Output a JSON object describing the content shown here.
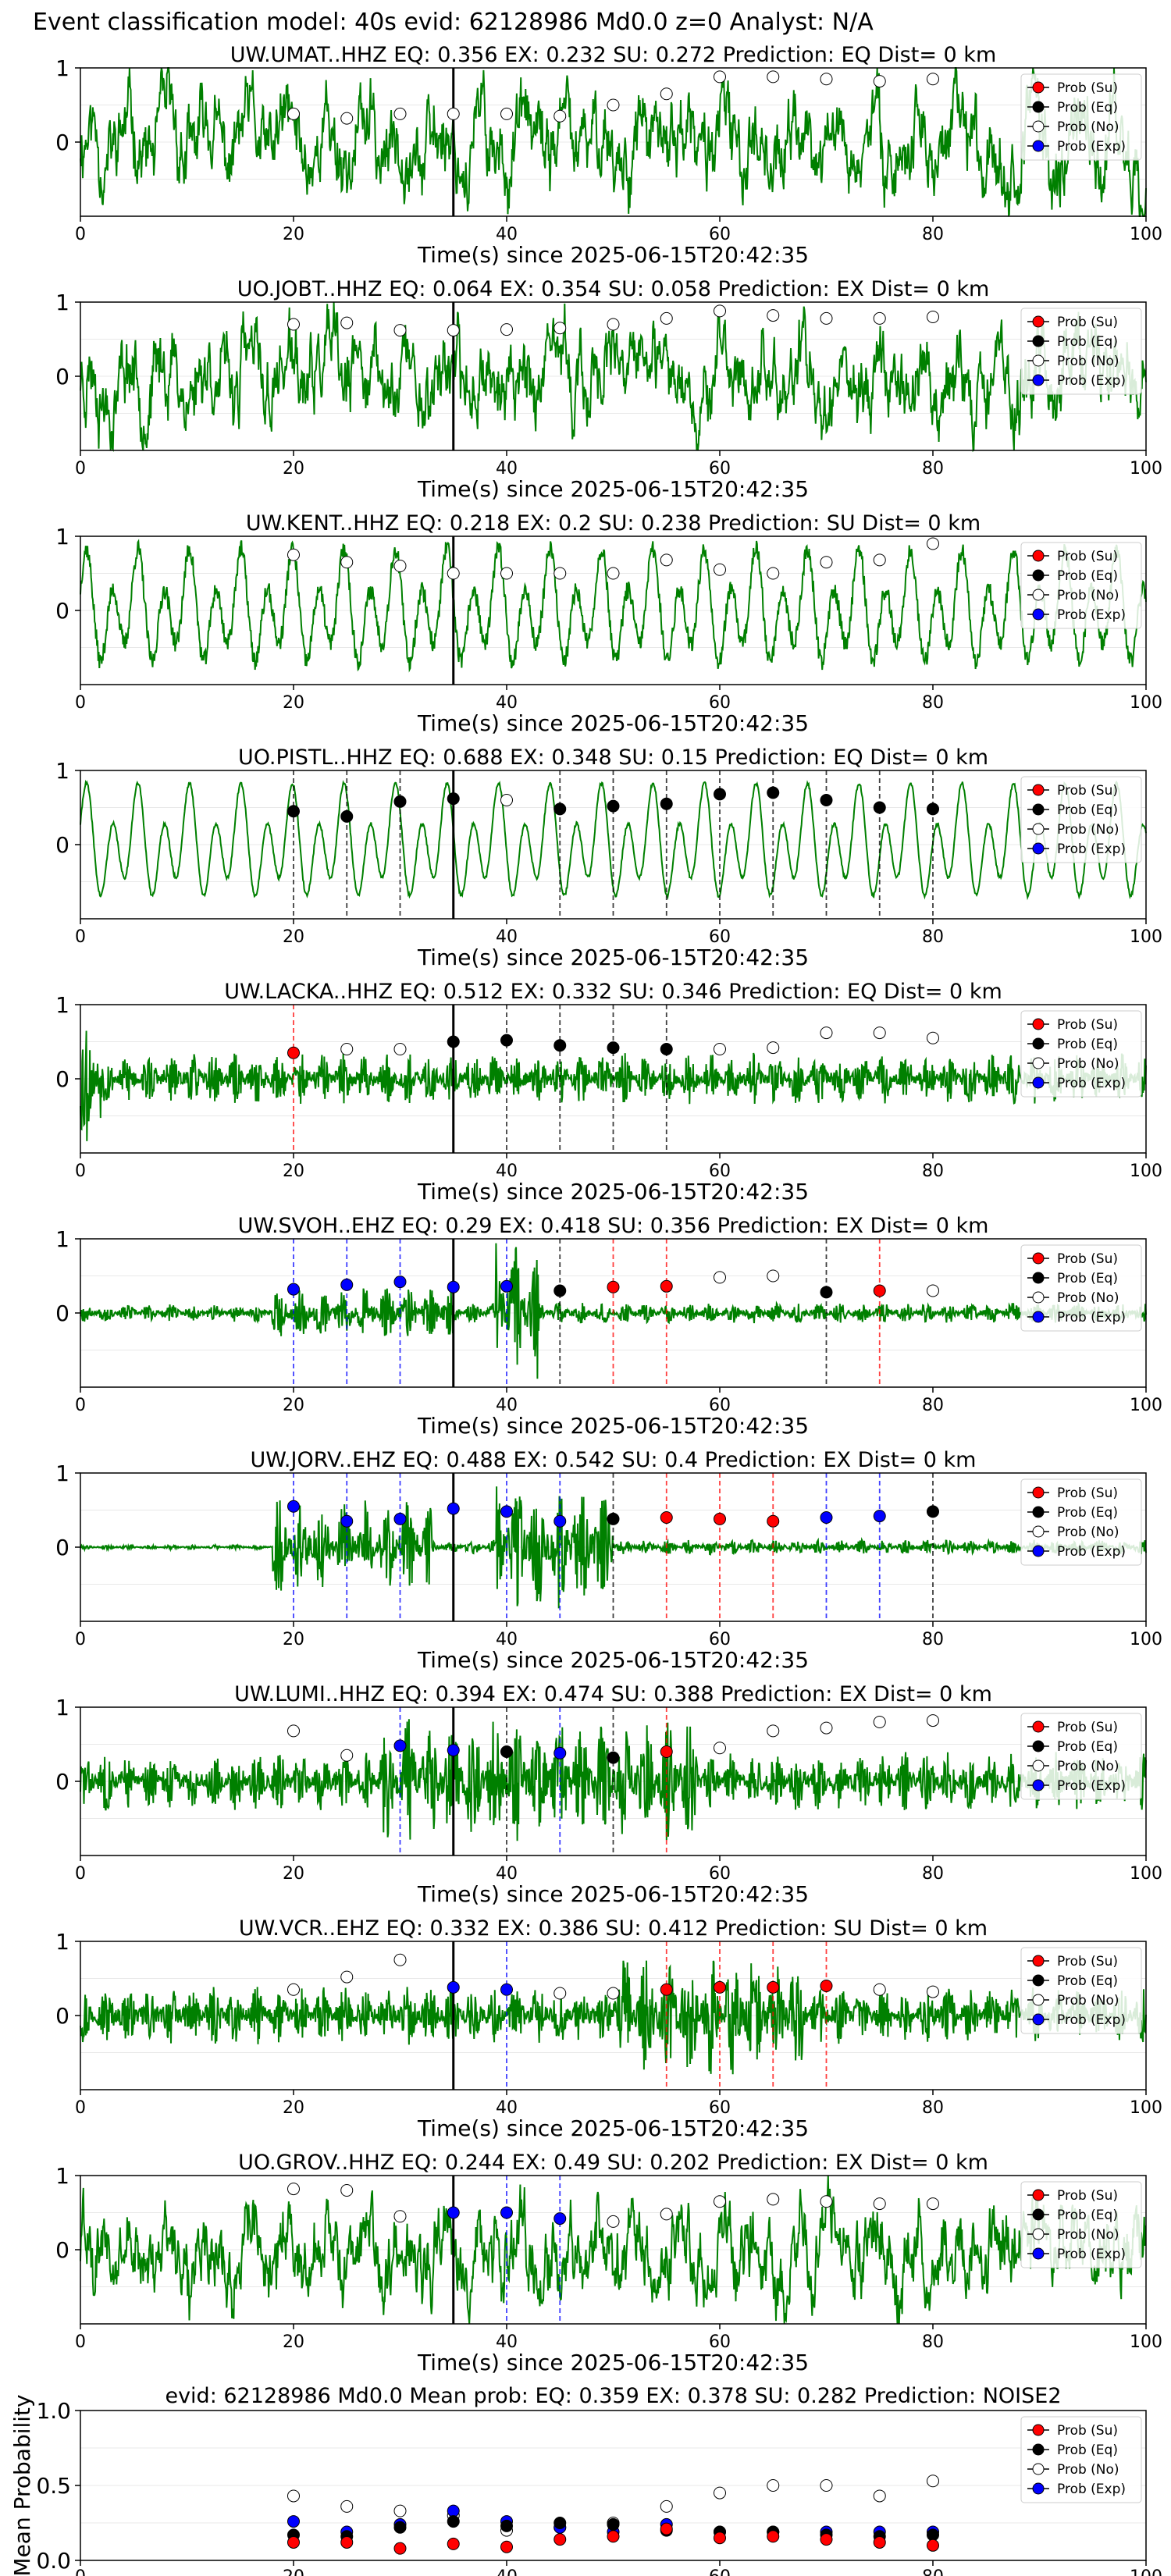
{
  "figure": {
    "suptitle": "Event classification model: 40s evid: 62128986 Md0.0 z=0 Analyst: N/A",
    "xlabel": "Time(s) since 2025-06-15T20:42:35",
    "legend": [
      "Prob (Su)",
      "Prob (Eq)",
      "Prob (No)",
      "Prob (Exp)"
    ],
    "colors": {
      "su": "#ff0000",
      "eq": "#000000",
      "no": "#ffffff",
      "exp": "#0000ff",
      "trace": "#008000"
    }
  },
  "chart_data": [
    {
      "type": "line",
      "station": "UW.UMAT..HHZ",
      "title": "UW.UMAT..HHZ   EQ: 0.356  EX: 0.232  SU: 0.272   Prediction: EQ    Dist= 0 km",
      "style": "broadband",
      "seed": 11,
      "points": [
        [
          "no",
          0.38
        ],
        [
          "no",
          0.32
        ],
        [
          "no",
          0.38
        ],
        [
          "no",
          0.38
        ],
        [
          "no",
          0.38
        ],
        [
          "no",
          0.35
        ],
        [
          "no",
          0.5
        ],
        [
          "no",
          0.65
        ],
        [
          "no",
          0.88
        ],
        [
          "no",
          0.88
        ],
        [
          "no",
          0.85
        ],
        [
          "no",
          0.82
        ],
        [
          "no",
          0.85
        ]
      ]
    },
    {
      "type": "line",
      "station": "UO.JOBT..HHZ",
      "title": "UO.JOBT..HHZ   EQ: 0.064  EX: 0.354  SU: 0.058   Prediction: EX    Dist= 0 km",
      "style": "broadband",
      "seed": 23,
      "points": [
        [
          "no",
          0.7
        ],
        [
          "no",
          0.72
        ],
        [
          "no",
          0.62
        ],
        [
          "no",
          0.62
        ],
        [
          "no",
          0.63
        ],
        [
          "no",
          0.65
        ],
        [
          "no",
          0.7
        ],
        [
          "no",
          0.78
        ],
        [
          "no",
          0.88
        ],
        [
          "no",
          0.82
        ],
        [
          "no",
          0.78
        ],
        [
          "no",
          0.78
        ],
        [
          "no",
          0.8
        ]
      ]
    },
    {
      "type": "line",
      "station": "UW.KENT..HHZ",
      "title": "UW.KENT..HHZ   EQ: 0.218  EX: 0.2  SU: 0.238   Prediction: SU    Dist= 0 km",
      "style": "wavy",
      "seed": 37,
      "points": [
        [
          "no",
          0.75
        ],
        [
          "no",
          0.65
        ],
        [
          "no",
          0.6
        ],
        [
          "no",
          0.5
        ],
        [
          "no",
          0.5
        ],
        [
          "no",
          0.5
        ],
        [
          "no",
          0.5
        ],
        [
          "no",
          0.68
        ],
        [
          "no",
          0.55
        ],
        [
          "no",
          0.5
        ],
        [
          "no",
          0.65
        ],
        [
          "no",
          0.68
        ],
        [
          "no",
          0.9
        ]
      ]
    },
    {
      "type": "line",
      "station": "UO.PISTL..HHZ",
      "title": "UO.PISTL..HHZ   EQ: 0.688  EX: 0.348  SU: 0.15   Prediction: EQ    Dist= 0 km",
      "style": "wavy2",
      "seed": 41,
      "points": [
        [
          "eq",
          0.45
        ],
        [
          "eq",
          0.38
        ],
        [
          "eq",
          0.58
        ],
        [
          "eq",
          0.62
        ],
        [
          "no",
          0.6
        ],
        [
          "eq",
          0.48
        ],
        [
          "eq",
          0.52
        ],
        [
          "eq",
          0.55
        ],
        [
          "eq",
          0.68
        ],
        [
          "eq",
          0.7
        ],
        [
          "eq",
          0.6
        ],
        [
          "eq",
          0.5
        ],
        [
          "eq",
          0.48
        ]
      ]
    },
    {
      "type": "line",
      "station": "UW.LACKA..HHZ",
      "title": "UW.LACKA..HHZ   EQ: 0.512  EX: 0.332  SU: 0.346   Prediction: EQ    Dist= 0 km",
      "style": "decay",
      "seed": 53,
      "points": [
        [
          "su",
          0.35
        ],
        [
          "no",
          0.4
        ],
        [
          "no",
          0.4
        ],
        [
          "eq",
          0.5
        ],
        [
          "eq",
          0.52
        ],
        [
          "eq",
          0.45
        ],
        [
          "eq",
          0.42
        ],
        [
          "eq",
          0.4
        ],
        [
          "no",
          0.4
        ],
        [
          "no",
          0.42
        ],
        [
          "no",
          0.62
        ],
        [
          "no",
          0.62
        ],
        [
          "no",
          0.55
        ]
      ]
    },
    {
      "type": "line",
      "station": "UW.SVOH..EHZ",
      "title": "UW.SVOH..EHZ   EQ: 0.29  EX: 0.418  SU: 0.356   Prediction: EX    Dist= 0 km",
      "style": "bursts1",
      "seed": 67,
      "points": [
        [
          "exp",
          0.32
        ],
        [
          "exp",
          0.38
        ],
        [
          "exp",
          0.42
        ],
        [
          "exp",
          0.35
        ],
        [
          "exp",
          0.36
        ],
        [
          "eq",
          0.3
        ],
        [
          "su",
          0.35
        ],
        [
          "su",
          0.36
        ],
        [
          "no",
          0.48
        ],
        [
          "no",
          0.5
        ],
        [
          "eq",
          0.28
        ],
        [
          "su",
          0.3
        ],
        [
          "no",
          0.3
        ]
      ]
    },
    {
      "type": "line",
      "station": "UW.JORV..EHZ",
      "title": "UW.JORV..EHZ   EQ: 0.488  EX: 0.542  SU: 0.4   Prediction: EX    Dist= 0 km",
      "style": "bursts2",
      "seed": 79,
      "points": [
        [
          "exp",
          0.55
        ],
        [
          "exp",
          0.35
        ],
        [
          "exp",
          0.38
        ],
        [
          "exp",
          0.52
        ],
        [
          "exp",
          0.48
        ],
        [
          "exp",
          0.35
        ],
        [
          "eq",
          0.38
        ],
        [
          "su",
          0.4
        ],
        [
          "su",
          0.38
        ],
        [
          "su",
          0.35
        ],
        [
          "exp",
          0.4
        ],
        [
          "exp",
          0.42
        ],
        [
          "eq",
          0.48
        ]
      ]
    },
    {
      "type": "line",
      "station": "UW.LUMI..HHZ",
      "title": "UW.LUMI..HHZ   EQ: 0.394  EX: 0.474  SU: 0.388   Prediction: EX    Dist= 0 km",
      "style": "bursts3",
      "seed": 83,
      "points": [
        [
          "no",
          0.68
        ],
        [
          "no",
          0.35
        ],
        [
          "exp",
          0.48
        ],
        [
          "exp",
          0.42
        ],
        [
          "eq",
          0.4
        ],
        [
          "exp",
          0.38
        ],
        [
          "eq",
          0.32
        ],
        [
          "su",
          0.4
        ],
        [
          "no",
          0.45
        ],
        [
          "no",
          0.68
        ],
        [
          "no",
          0.72
        ],
        [
          "no",
          0.8
        ],
        [
          "no",
          0.82
        ]
      ]
    },
    {
      "type": "line",
      "station": "UW.VCR..EHZ",
      "title": "UW.VCR..EHZ   EQ: 0.332  EX: 0.386  SU: 0.412   Prediction: SU    Dist= 0 km",
      "style": "bursts4",
      "seed": 97,
      "points": [
        [
          "no",
          0.35
        ],
        [
          "no",
          0.52
        ],
        [
          "no",
          0.75
        ],
        [
          "exp",
          0.38
        ],
        [
          "exp",
          0.35
        ],
        [
          "no",
          0.3
        ],
        [
          "no",
          0.3
        ],
        [
          "su",
          0.35
        ],
        [
          "su",
          0.38
        ],
        [
          "su",
          0.38
        ],
        [
          "su",
          0.4
        ],
        [
          "no",
          0.35
        ],
        [
          "no",
          0.32
        ]
      ]
    },
    {
      "type": "line",
      "station": "UO.GROV..HHZ",
      "title": "UO.GROV..HHZ   EQ: 0.244  EX: 0.49  SU: 0.202   Prediction: EX    Dist= 0 km",
      "style": "broadband2",
      "seed": 101,
      "points": [
        [
          "no",
          0.82
        ],
        [
          "no",
          0.8
        ],
        [
          "no",
          0.45
        ],
        [
          "exp",
          0.5
        ],
        [
          "exp",
          0.5
        ],
        [
          "exp",
          0.42
        ],
        [
          "no",
          0.38
        ],
        [
          "no",
          0.48
        ],
        [
          "no",
          0.65
        ],
        [
          "no",
          0.68
        ],
        [
          "no",
          0.65
        ],
        [
          "no",
          0.62
        ],
        [
          "no",
          0.62
        ]
      ]
    },
    {
      "type": "scatter",
      "title": "evid: 62128986  Md0.0   Mean prob:   EQ: 0.359  EX: 0.378  SU: 0.282   Prediction: NOISE2",
      "ylabel": "Mean Probability",
      "ylim": [
        0,
        1
      ],
      "x": [
        20,
        25,
        30,
        35,
        40,
        45,
        50,
        55,
        60,
        65,
        70,
        75,
        80
      ],
      "series": [
        {
          "name": "Prob (No)",
          "kind": "no",
          "values": [
            0.43,
            0.36,
            0.33,
            0.3,
            0.2,
            0.22,
            0.25,
            0.36,
            0.45,
            0.5,
            0.5,
            0.43,
            0.53
          ]
        },
        {
          "name": "Prob (Exp)",
          "kind": "exp",
          "values": [
            0.26,
            0.19,
            0.24,
            0.33,
            0.26,
            0.22,
            0.19,
            0.24,
            0.19,
            0.19,
            0.19,
            0.19,
            0.19
          ]
        },
        {
          "name": "Prob (Eq)",
          "kind": "eq",
          "values": [
            0.17,
            0.16,
            0.22,
            0.26,
            0.23,
            0.25,
            0.24,
            0.2,
            0.19,
            0.19,
            0.17,
            0.16,
            0.17
          ]
        },
        {
          "name": "Prob (Su)",
          "kind": "su",
          "values": [
            0.12,
            0.12,
            0.08,
            0.11,
            0.09,
            0.14,
            0.16,
            0.21,
            0.15,
            0.16,
            0.14,
            0.12,
            0.1
          ]
        }
      ]
    }
  ]
}
